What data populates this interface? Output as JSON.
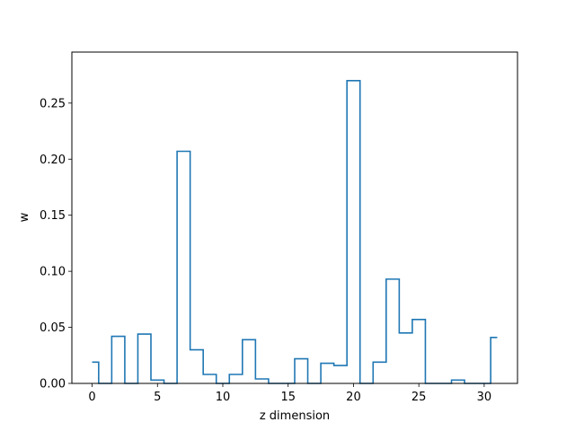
{
  "chart_data": {
    "type": "step",
    "title": "",
    "xlabel": "z dimension",
    "ylabel": "w",
    "xlim": [
      -1.55,
      32.55
    ],
    "ylim": [
      0,
      0.2955
    ],
    "xticks": [
      0,
      5,
      10,
      15,
      20,
      25,
      30
    ],
    "yticks": [
      0.0,
      0.05,
      0.1,
      0.15,
      0.2,
      0.25
    ],
    "xtick_labels": [
      "0",
      "5",
      "10",
      "15",
      "20",
      "25",
      "30"
    ],
    "ytick_labels": [
      "0.00",
      "0.05",
      "0.10",
      "0.15",
      "0.20",
      "0.25"
    ],
    "series": [
      {
        "color": "#1f77b4",
        "step": "mid",
        "x": [
          0,
          1,
          2,
          3,
          4,
          5,
          6,
          7,
          8,
          9,
          10,
          11,
          12,
          13,
          14,
          15,
          16,
          17,
          18,
          19,
          20,
          21,
          22,
          23,
          24,
          25,
          26,
          27,
          28,
          29,
          30,
          31
        ],
        "values": [
          0.019,
          0.0,
          0.042,
          0.0,
          0.044,
          0.003,
          0.0,
          0.207,
          0.03,
          0.008,
          0.0,
          0.008,
          0.039,
          0.004,
          0.0,
          0.0,
          0.022,
          0.0,
          0.018,
          0.016,
          0.27,
          0.0,
          0.019,
          0.093,
          0.045,
          0.057,
          0.0,
          0.0,
          0.003,
          0.0,
          0.0,
          0.041
        ]
      }
    ],
    "grid": false,
    "legend": "none"
  }
}
